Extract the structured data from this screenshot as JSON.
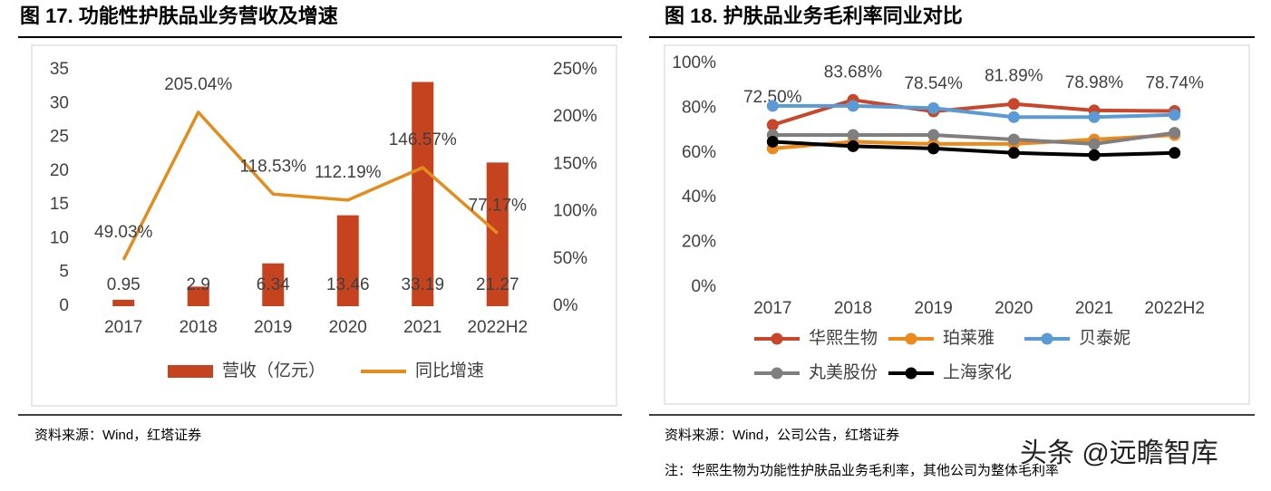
{
  "chart_data": [
    {
      "type": "combo",
      "title": "图 17. 功能性护肤品业务营收及增速",
      "categories": [
        "2017",
        "2018",
        "2019",
        "2020",
        "2021",
        "2022H2"
      ],
      "series": [
        {
          "name": "营收（亿元）",
          "type": "bar",
          "color": "#c5441f",
          "values": [
            0.95,
            2.9,
            6.34,
            13.46,
            33.19,
            21.27
          ]
        },
        {
          "name": "同比增速",
          "type": "line",
          "axis": "y2",
          "color": "#e48d1f",
          "values": [
            49.03,
            205.04,
            118.53,
            112.19,
            146.57,
            77.17
          ],
          "value_labels": [
            "49.03%",
            "205.04%",
            "118.53%",
            "112.19%",
            "146.57%",
            "77.17%"
          ]
        }
      ],
      "ylim": [
        0,
        35
      ],
      "yticks": [
        0,
        5,
        10,
        15,
        20,
        25,
        30,
        35
      ],
      "y2lim": [
        0,
        250
      ],
      "y2ticks": [
        {
          "value": 0,
          "label": "0%"
        },
        {
          "value": 50,
          "label": "50%"
        },
        {
          "value": 100,
          "label": "100%"
        },
        {
          "value": 150,
          "label": "150%"
        },
        {
          "value": 200,
          "label": "200%"
        },
        {
          "value": 250,
          "label": "250%"
        }
      ],
      "grid": false,
      "legend": "bottom",
      "source": "资料来源：Wind，红塔证券"
    },
    {
      "type": "line",
      "title": "图 18. 护肤品业务毛利率同业对比",
      "categories": [
        "2017",
        "2018",
        "2019",
        "2020",
        "2021",
        "2022H2"
      ],
      "series": [
        {
          "name": "华熙生物",
          "color": "#c8472b",
          "values": [
            72.5,
            83.68,
            78.54,
            81.89,
            78.98,
            78.74
          ],
          "value_labels": [
            "72.50%",
            "83.68%",
            "78.54%",
            "81.89%",
            "78.98%",
            "78.74%"
          ]
        },
        {
          "name": "珀莱雅",
          "color": "#ed8a1c",
          "values": [
            62,
            65,
            64,
            64,
            66,
            68
          ]
        },
        {
          "name": "贝泰妮",
          "color": "#5b9bd5",
          "values": [
            81,
            81,
            80,
            76,
            76,
            77
          ]
        },
        {
          "name": "丸美股份",
          "color": "#7f7f7f",
          "values": [
            68,
            68,
            68,
            66,
            64,
            69
          ]
        },
        {
          "name": "上海家化",
          "color": "#000000",
          "values": [
            65,
            63,
            62,
            60,
            59,
            60
          ]
        }
      ],
      "ylim": [
        0,
        100
      ],
      "yticks": [
        {
          "value": 0,
          "label": "0%"
        },
        {
          "value": 20,
          "label": "20%"
        },
        {
          "value": 40,
          "label": "40%"
        },
        {
          "value": 60,
          "label": "60%"
        },
        {
          "value": 80,
          "label": "80%"
        },
        {
          "value": 100,
          "label": "100%"
        }
      ],
      "grid": false,
      "legend": "bottom",
      "source": "资料来源：Wind，公司公告，红塔证券",
      "note": "注：华熙生物为功能性护肤品业务毛利率，其他公司为整体毛利率"
    }
  ],
  "watermark": "头条 @远瞻智库"
}
